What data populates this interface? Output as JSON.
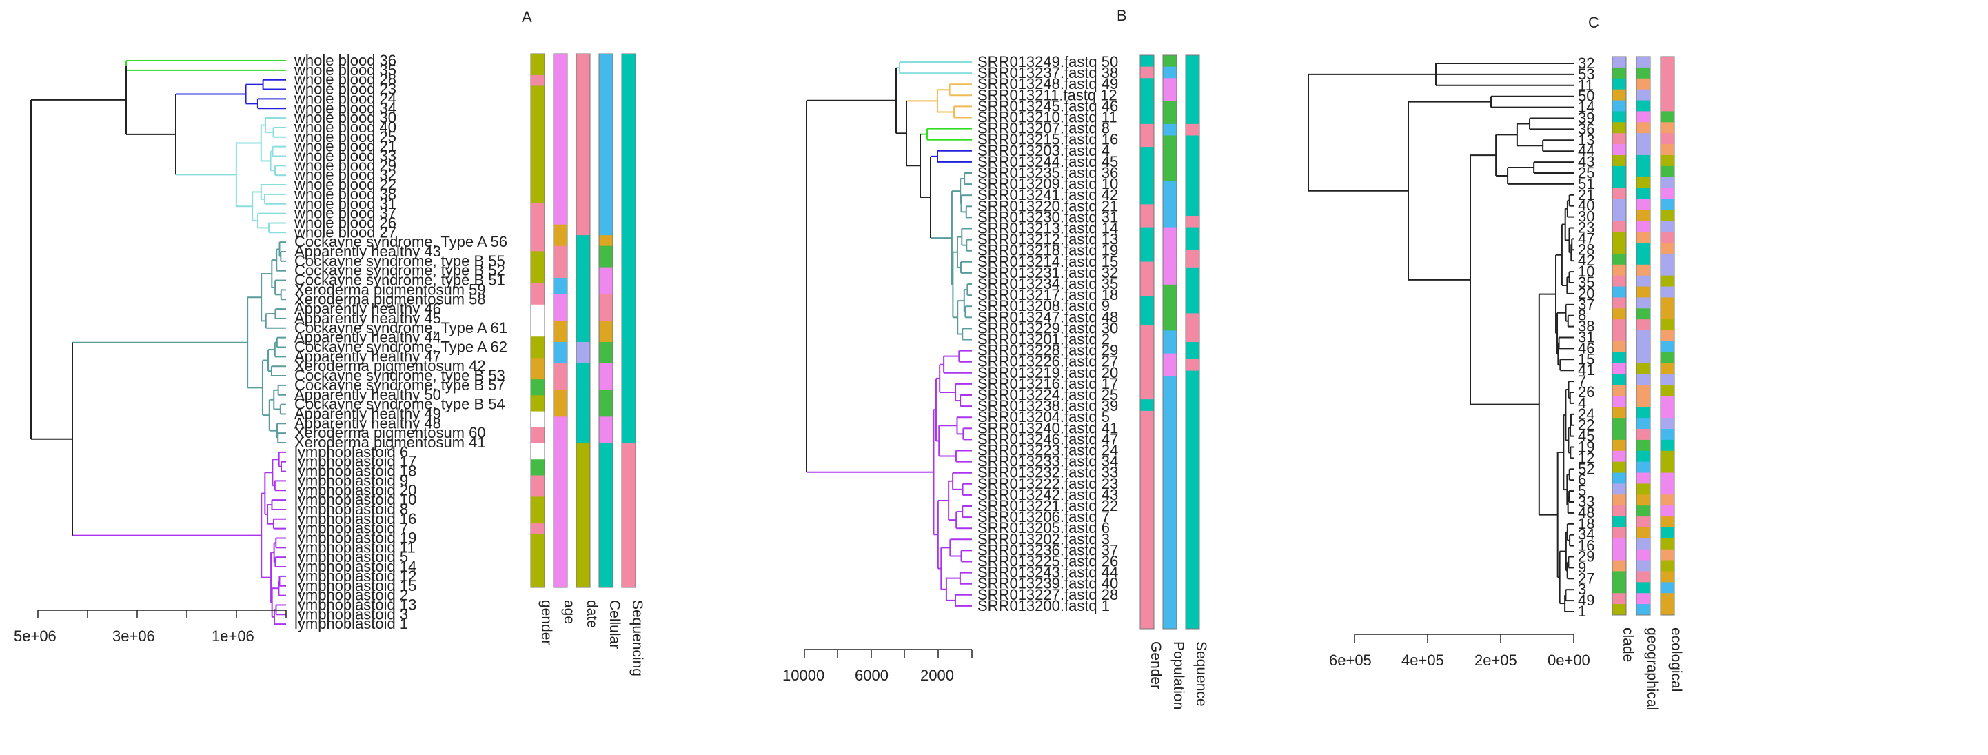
{
  "panels": [
    {
      "letter": "A",
      "leaves": [
        "whole blood 36",
        "whole blood 35",
        "whole blood 28",
        "whole blood 23",
        "whole blood 24",
        "whole blood 34",
        "whole blood 30",
        "whole blood 40",
        "whole blood 25",
        "whole blood 21",
        "whole blood 33",
        "whole blood 29",
        "whole blood 32",
        "whole blood 22",
        "whole blood 38",
        "whole blood 31",
        "whole blood 37",
        "whole blood 26",
        "whole blood 27",
        "Cockayne syndrome, Type A 56",
        "Apparently healthy 43",
        "Cockayne syndrome, type B 55",
        "Cockayne syndrome, type B 52",
        "Cockayne syndrome, type B 51",
        "Xeroderma pigmentosum 59",
        "Xeroderma pigmentosum 58",
        "Apparently healthy 46",
        "Apparently healthy 45",
        "Cockayne syndrome, Type A 61",
        "Apparently healthy 44",
        "Cockayne syndrome, Type A 62",
        "Apparently healthy 47",
        "Xeroderma pigmentosum 42",
        "Cockayne syndrome, type B 53",
        "Cockayne syndrome, type B 57",
        "Apparently healthy 50",
        "Cockayne syndrome, type B 54",
        "Apparently healthy 49",
        "Apparently healthy 48",
        "Xeroderma pigmentosum 60",
        "Xeroderma pigmentosum 41",
        "lymphoblastoid 6",
        "lymphoblastoid 17",
        "lymphoblastoid 18",
        "lymphoblastoid 9",
        "lymphoblastoid 20",
        "lymphoblastoid 10",
        "lymphoblastoid 8",
        "lymphoblastoid 16",
        "lymphoblastoid 7",
        "lymphoblastoid 19",
        "lymphoblastoid 11",
        "lymphoblastoid 5",
        "lymphoblastoid 14",
        "lymphoblastoid 12",
        "lymphoblastoid 15",
        "lymphoblastoid 2",
        "lymphoblastoid 13",
        "lymphoblastoid 3",
        "lymphoblastoid 1"
      ],
      "axis_ticks": [
        "5e+06",
        "3e+06",
        "1e+06"
      ],
      "bar_labels": [
        "gender",
        "age",
        "date",
        "Cellular",
        "Sequencing"
      ]
    },
    {
      "letter": "B",
      "leaves": [
        "SRR013249.fastq 50",
        "SRR013237.fastq 38",
        "SRR013248.fastq 49",
        "SRR013211.fastq 12",
        "SRR013245.fastq 46",
        "SRR013210.fastq 11",
        "SRR013207.fastq 8",
        "SRR013215.fastq 16",
        "SRR013203.fastq 4",
        "SRR013244.fastq 45",
        "SRR013235.fastq 36",
        "SRR013209.fastq 10",
        "SRR013241.fastq 42",
        "SRR013220.fastq 21",
        "SRR013230.fastq 31",
        "SRR013213.fastq 14",
        "SRR013212.fastq 13",
        "SRR013218.fastq 19",
        "SRR013214.fastq 15",
        "SRR013231.fastq 32",
        "SRR013234.fastq 35",
        "SRR013217.fastq 18",
        "SRR013208.fastq 9",
        "SRR013247.fastq 48",
        "SRR013229.fastq 30",
        "SRR013201.fastq 2",
        "SRR013228.fastq 29",
        "SRR013226.fastq 27",
        "SRR013219.fastq 20",
        "SRR013216.fastq 17",
        "SRR013224.fastq 25",
        "SRR013238.fastq 39",
        "SRR013204.fastq 5",
        "SRR013240.fastq 41",
        "SRR013246.fastq 47",
        "SRR013223.fastq 24",
        "SRR013233.fastq 34",
        "SRR013232.fastq 33",
        "SRR013222.fastq 23",
        "SRR013242.fastq 43",
        "SRR013221.fastq 22",
        "SRR013206.fastq 7",
        "SRR013205.fastq 6",
        "SRR013202.fastq 3",
        "SRR013236.fastq 37",
        "SRR013225.fastq 26",
        "SRR013243.fastq 44",
        "SRR013239.fastq 40",
        "SRR013227.fastq 28",
        "SRR013200.fastq 1"
      ],
      "axis_ticks": [
        "10000",
        "6000",
        "2000"
      ],
      "bar_labels": [
        "Gender",
        "Population",
        "Sequence"
      ]
    },
    {
      "letter": "C",
      "leaves": [
        "32",
        "53",
        "11",
        "50",
        "14",
        "39",
        "36",
        "13",
        "44",
        "43",
        "25",
        "51",
        "21",
        "40",
        "30",
        "23",
        "47",
        "28",
        "42",
        "10",
        "35",
        "20",
        "37",
        "8",
        "38",
        "31",
        "46",
        "15",
        "41",
        "7",
        "26",
        "4",
        "24",
        "22",
        "45",
        "19",
        "12",
        "52",
        "6",
        "5",
        "33",
        "48",
        "18",
        "34",
        "16",
        "29",
        "9",
        "27",
        "3",
        "49",
        "1"
      ],
      "axis_ticks": [
        "6e+05",
        "4e+05",
        "2e+05",
        "0e+00"
      ],
      "bar_labels": [
        "clade",
        "geographical",
        "ecological"
      ]
    }
  ],
  "colors": {
    "green": "#33dd22",
    "blue": "#2222dd",
    "cyan": "#88dddd",
    "teal": "#5a9c9c",
    "purple": "#aa33ee",
    "orange": "#eebb55",
    "black": "#222222",
    "pink": "#f28aa3",
    "olive": "#a9b300",
    "sky": "#45b8ee",
    "sea": "#00c3b0",
    "magenta": "#ee88ee",
    "lavender": "#a8a8ee",
    "mustard": "#dda622",
    "leaf_green": "#44bb44",
    "salmon": "#f4a06a",
    "white": "#ffffff"
  }
}
